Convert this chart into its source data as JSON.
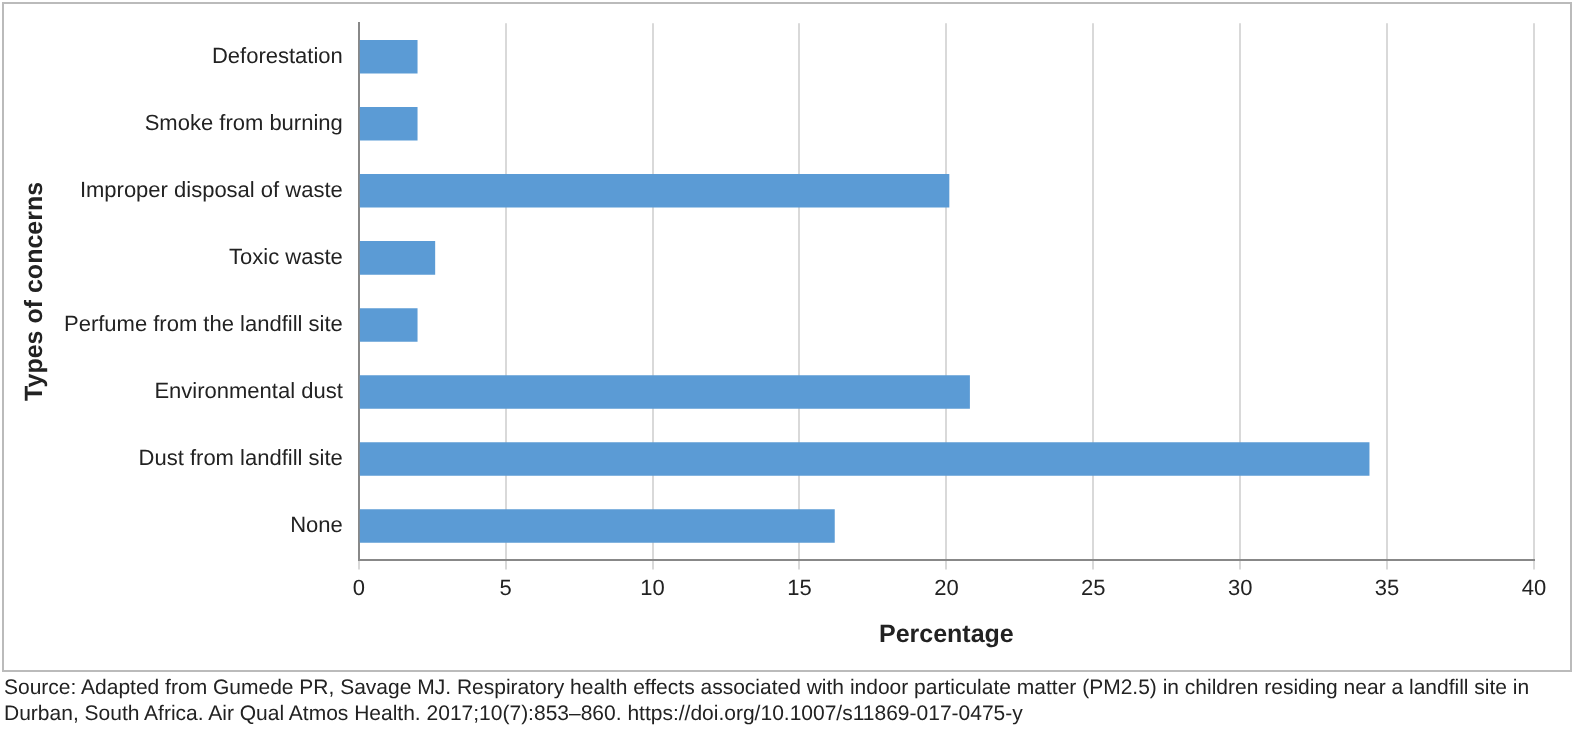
{
  "chart_data": {
    "type": "bar",
    "orientation": "horizontal",
    "xlabel": "Percentage",
    "ylabel": "Types of concerns",
    "categories": [
      "Deforestation",
      "Smoke from burning",
      "Improper disposal of waste",
      "Toxic waste",
      "Perfume from the landfill site",
      "Environmental dust",
      "Dust from landfill site",
      "None"
    ],
    "values": [
      2.0,
      2.0,
      20.1,
      2.6,
      2.0,
      20.8,
      34.4,
      16.2
    ],
    "color": "#5b9bd5",
    "xlim": [
      0,
      40
    ],
    "xticks": [
      0,
      5,
      10,
      15,
      20,
      25,
      30,
      35,
      40
    ],
    "grid": "x",
    "annotations": [
      "Source: Adapted from Gumede PR, Savage MJ. Respiratory health effects associated with indoor particulate matter (PM2.5) in children residing near a landfill site in Durban, South Africa. Air Qual Atmos Health. 2017;10(7):853–860. https://doi.org/10.1007/s11869-017-0475-y"
    ]
  }
}
